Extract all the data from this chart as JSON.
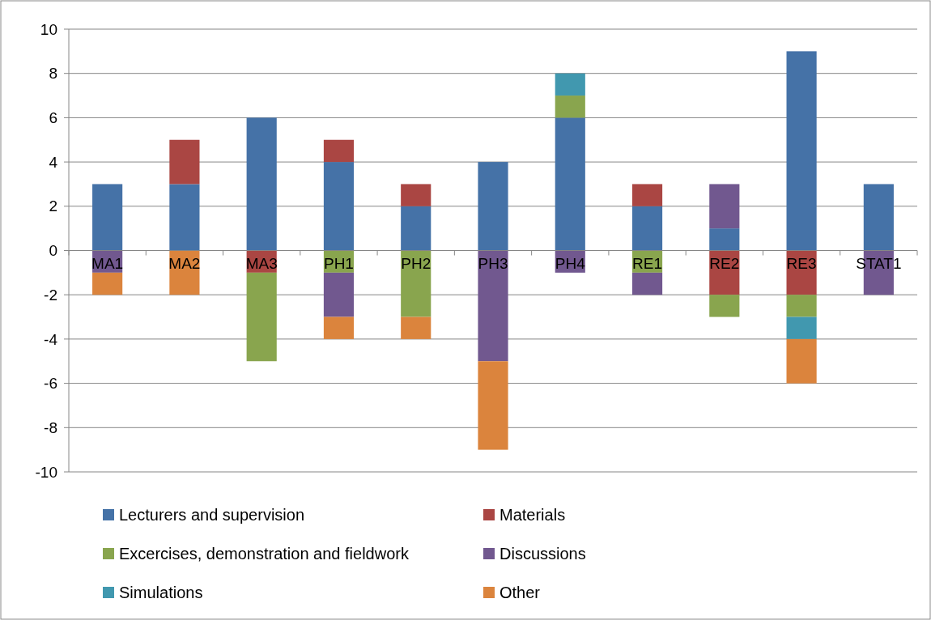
{
  "chart_data": {
    "type": "bar",
    "stacked": true,
    "categories": [
      "MA1",
      "MA2",
      "MA3",
      "PH1",
      "PH2",
      "PH3",
      "PH4",
      "RE1",
      "RE2",
      "RE3",
      "STAT1"
    ],
    "series": [
      {
        "name": "Lecturers and supervision",
        "color": "#4572a7",
        "values": [
          3,
          3,
          6,
          4,
          2,
          4,
          6,
          2,
          1,
          9,
          3
        ]
      },
      {
        "name": "Materials",
        "color": "#aa4643",
        "values": [
          null,
          2,
          -1,
          1,
          1,
          null,
          null,
          1,
          -2,
          -2,
          null
        ]
      },
      {
        "name": "Excercises, demonstration and fieldwork",
        "color": "#89a54e",
        "values": [
          null,
          null,
          -4,
          -1,
          -3,
          null,
          1,
          -1,
          -1,
          -1,
          null
        ]
      },
      {
        "name": "Discussions",
        "color": "#71588f",
        "values": [
          -1,
          null,
          null,
          -2,
          null,
          -5,
          -1,
          -1,
          2,
          null,
          -2
        ]
      },
      {
        "name": "Simulations",
        "color": "#4198af",
        "values": [
          null,
          null,
          null,
          null,
          null,
          null,
          1,
          null,
          null,
          -1,
          null
        ]
      },
      {
        "name": "Other",
        "color": "#db843d",
        "values": [
          -1,
          -2,
          null,
          -1,
          -1,
          -4,
          null,
          null,
          null,
          -2,
          null
        ]
      }
    ],
    "ylim": [
      -10,
      10
    ],
    "yticks": [
      -10,
      -8,
      -6,
      -4,
      -2,
      0,
      2,
      4,
      6,
      8,
      10
    ],
    "grid": "y",
    "legend": "bottom"
  }
}
